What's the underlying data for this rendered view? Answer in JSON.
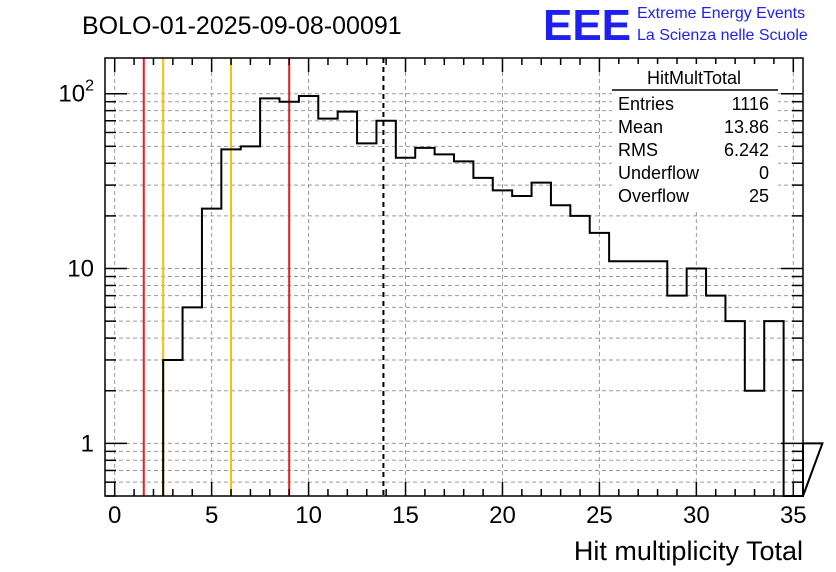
{
  "run_title": "BOLO-01-2025-09-08-00091",
  "logo": {
    "mark": "EEE",
    "line1": "Extreme Energy Events",
    "line2": "La Scienza nelle Scuole",
    "color": "#1f1ff0"
  },
  "stats": {
    "title": "HitMultTotal",
    "rows": [
      {
        "label": "Entries",
        "value": "1116"
      },
      {
        "label": "Mean",
        "value": "13.86"
      },
      {
        "label": "RMS",
        "value": "6.242"
      },
      {
        "label": "Underflow",
        "value": "0"
      },
      {
        "label": "Overflow",
        "value": "25"
      }
    ]
  },
  "chart_data": {
    "type": "histogram",
    "title": "BOLO-01-2025-09-08-00091",
    "xlabel": "Hit multiplicity Total",
    "ylabel": "",
    "xlim": [
      -0.5,
      35.5
    ],
    "ylim": [
      0.5,
      160
    ],
    "yscale": "log",
    "grid": true,
    "bin_width": 1,
    "bin_edges_start": 2.5,
    "values": [
      3,
      6,
      22,
      48,
      50,
      94,
      90,
      97,
      72,
      79,
      52,
      70,
      43,
      49,
      45,
      41,
      33,
      28,
      26,
      31,
      23,
      20,
      16,
      11,
      11,
      11,
      7,
      10,
      7,
      5,
      2,
      5,
      0,
      1
    ],
    "x_ticks": [
      0,
      5,
      10,
      15,
      20,
      25,
      30,
      35
    ],
    "y_ticks": [
      {
        "value": 1,
        "label": "1"
      },
      {
        "value": 10,
        "label": "10"
      },
      {
        "value": 100,
        "label": "10",
        "sup": "2"
      }
    ],
    "vlines": [
      {
        "x": 1.5,
        "color": "#e0201c",
        "style": "solid"
      },
      {
        "x": 2.5,
        "color": "#f3c300",
        "style": "solid"
      },
      {
        "x": 6.0,
        "color": "#f3c300",
        "style": "solid"
      },
      {
        "x": 9.0,
        "color": "#e0201c",
        "style": "solid"
      },
      {
        "x": 13.86,
        "color": "#000000",
        "style": "dashed"
      }
    ]
  }
}
